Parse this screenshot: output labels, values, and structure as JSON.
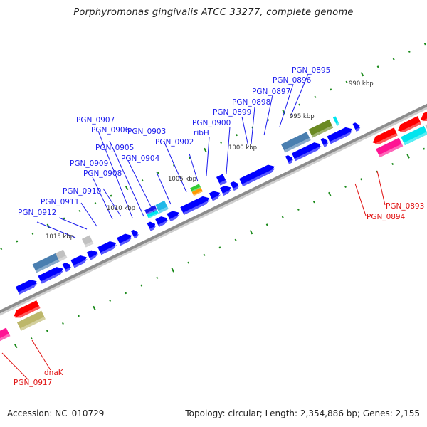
{
  "title": "Porphyromonas gingivalis ATCC 33277, complete genome",
  "footer": {
    "accession": "Accession: NC_010729",
    "summary": "Topology: circular; Length: 2,354,886 bp; Genes: 2,155"
  },
  "colors": {
    "forward_label": "#1a1aee",
    "reverse_label": "#e01010",
    "backbone": "#8c8c8c",
    "tick": "#1a8a1a",
    "cds": "#0000ff",
    "cds_reverse": "#ff0000"
  },
  "ruler_labels": [
    {
      "text": "990 kbp",
      "kbp": 990
    },
    {
      "text": "995 kbp",
      "kbp": 995
    },
    {
      "text": "1000 kbp",
      "kbp": 1000
    },
    {
      "text": "1005 kbp",
      "kbp": 1005
    },
    {
      "text": "1010 kbp",
      "kbp": 1010
    },
    {
      "text": "1015 kbp",
      "kbp": 1015
    }
  ],
  "forward_gene_labels": [
    {
      "name": "PGN_0895"
    },
    {
      "name": "PGN_0896"
    },
    {
      "name": "PGN_0897"
    },
    {
      "name": "PGN_0898"
    },
    {
      "name": "PGN_0899"
    },
    {
      "name": "PGN_0900"
    },
    {
      "name": "ribH"
    },
    {
      "name": "PGN_0902"
    },
    {
      "name": "PGN_0903"
    },
    {
      "name": "PGN_0904"
    },
    {
      "name": "PGN_0905"
    },
    {
      "name": "PGN_0906"
    },
    {
      "name": "PGN_0907"
    },
    {
      "name": "PGN_0908"
    },
    {
      "name": "PGN_0909"
    },
    {
      "name": "PGN_0910"
    },
    {
      "name": "PGN_0911"
    },
    {
      "name": "PGN_0912"
    }
  ],
  "reverse_gene_labels": [
    {
      "name": "PGN_0893"
    },
    {
      "name": "PGN_0894"
    },
    {
      "name": "dnaK"
    },
    {
      "name": "PGN_0917"
    }
  ],
  "feature_colors": {
    "cds_fwd": "#0000ff",
    "cds_rev": "#ff0000",
    "steelblue": "#4a7fb0",
    "olive": "#6b8a23",
    "cyan": "#00e5ee",
    "skyblue": "#22b8e8",
    "gray": "#c0c0c0",
    "green": "#33cc33",
    "orange": "#ff9900",
    "magenta": "#ff1493",
    "navy": "#4b3f8f",
    "khaki": "#bdb76b"
  }
}
